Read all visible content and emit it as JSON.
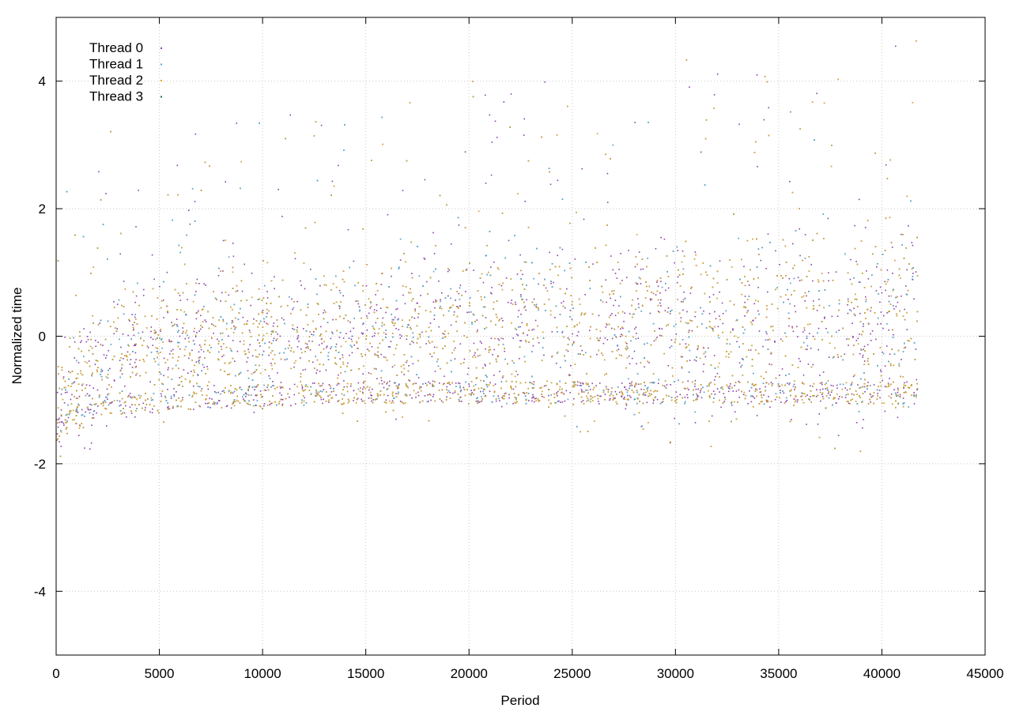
{
  "chart_data": {
    "type": "scatter",
    "title": "",
    "xlabel": "Period",
    "ylabel": "Normalized time",
    "xlim": [
      0,
      45000
    ],
    "ylim": [
      -5,
      5
    ],
    "x_ticks": [
      0,
      5000,
      10000,
      15000,
      20000,
      25000,
      30000,
      35000,
      40000,
      45000
    ],
    "y_ticks": [
      -4,
      -2,
      0,
      2,
      4
    ],
    "grid": true,
    "legend_position": "top-left",
    "x_data_range": [
      0,
      41700
    ],
    "series": [
      {
        "name": "Thread 0",
        "color": "#8a3fa6"
      },
      {
        "name": "Thread 1",
        "color": "#5aa6d6"
      },
      {
        "name": "Thread 2",
        "color": "#e0a020"
      },
      {
        "name": "Thread 3",
        "color": "#226655"
      }
    ],
    "approximate_trend": {
      "x": [
        0,
        2000,
        5000,
        10000,
        15000,
        20000,
        25000,
        30000,
        35000,
        40000,
        41700
      ],
      "lower_band": [
        -1.5,
        -1.2,
        -1.15,
        -1.05,
        -1.0,
        -1.0,
        -1.0,
        -1.0,
        -1.0,
        -1.0,
        -1.0
      ],
      "median": [
        -1.1,
        -0.4,
        -0.1,
        0.0,
        0.05,
        0.1,
        0.2,
        0.2,
        0.25,
        0.25,
        0.3
      ],
      "upper_band": [
        0.2,
        0.9,
        1.0,
        1.2,
        1.4,
        1.7,
        1.9,
        2.2,
        2.2,
        2.4,
        2.5
      ]
    }
  }
}
